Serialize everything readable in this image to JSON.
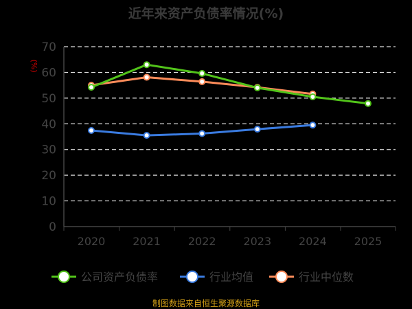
{
  "chart_data": {
    "type": "line",
    "title": "近年来资产负债率情况(%)",
    "ylabel": "(%)",
    "xlabel": "",
    "categories": [
      "2020",
      "2021",
      "2022",
      "2023",
      "2024",
      "2025"
    ],
    "ylim": [
      0,
      70
    ],
    "yticks": [
      0,
      10,
      20,
      30,
      40,
      50,
      60,
      70
    ],
    "grid": true,
    "legend_position": "bottom",
    "series": [
      {
        "name": "公司资产负债率",
        "color": "#52c41a",
        "values": [
          54.2,
          63.0,
          59.6,
          54.0,
          50.5,
          47.9
        ]
      },
      {
        "name": "行业均值",
        "color": "#3a7be0",
        "values": [
          37.4,
          35.5,
          36.2,
          37.9,
          39.5,
          null
        ]
      },
      {
        "name": "行业中位数",
        "color": "#ff8c5a",
        "values": [
          55.0,
          58.1,
          56.4,
          54.2,
          51.6,
          null
        ]
      }
    ],
    "source": "制图数据来自恒生聚源数据库"
  }
}
